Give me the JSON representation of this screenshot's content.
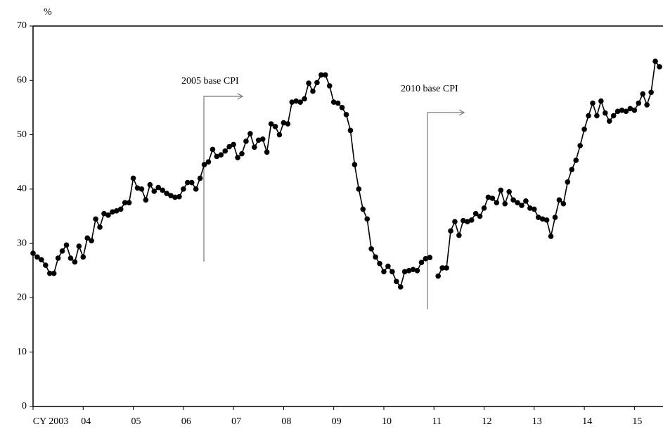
{
  "chart_data": {
    "type": "line",
    "y_unit": "%",
    "annotations": [
      "2005 base CPI",
      "2010 base CPI"
    ],
    "categories": [
      "CY 2003",
      null,
      null,
      null,
      null,
      null,
      null,
      null,
      null,
      null,
      null,
      null,
      "04",
      null,
      null,
      null,
      null,
      null,
      null,
      null,
      null,
      null,
      null,
      null,
      "05",
      null,
      null,
      null,
      null,
      null,
      null,
      null,
      null,
      null,
      null,
      null,
      "06",
      null,
      null,
      null,
      null,
      null,
      null,
      null,
      null,
      null,
      null,
      null,
      "07",
      null,
      null,
      null,
      null,
      null,
      null,
      null,
      null,
      null,
      null,
      null,
      "08",
      null,
      null,
      null,
      null,
      null,
      null,
      null,
      null,
      null,
      null,
      null,
      "09",
      null,
      null,
      null,
      null,
      null,
      null,
      null,
      null,
      null,
      null,
      null,
      "10",
      null,
      null,
      null,
      null,
      null,
      null,
      null,
      null,
      null,
      null,
      null,
      "11",
      null,
      null,
      null,
      null,
      null,
      null,
      null,
      null,
      null,
      null,
      null,
      "12",
      null,
      null,
      null,
      null,
      null,
      null,
      null,
      null,
      null,
      null,
      null,
      "13",
      null,
      null,
      null,
      null,
      null,
      null,
      null,
      null,
      null,
      null,
      null,
      "14",
      null,
      null,
      null,
      null,
      null,
      null,
      null,
      null,
      null,
      null,
      null,
      "15",
      null,
      null,
      null,
      null,
      null,
      null
    ],
    "values": [
      28.2,
      27.5,
      27,
      26,
      24.5,
      24.5,
      27.3,
      28.6,
      29.7,
      27.3,
      26.6,
      29.5,
      27.5,
      31,
      30.5,
      34.5,
      33,
      35.5,
      35.2,
      35.8,
      36,
      36.3,
      37.5,
      37.5,
      42,
      40.2,
      40,
      38,
      40.8,
      39.6,
      40.3,
      39.8,
      39.2,
      38.8,
      38.5,
      38.6,
      40,
      41.2,
      41.2,
      40,
      42,
      44.5,
      45,
      47.3,
      46,
      46.3,
      47,
      47.8,
      48.2,
      45.8,
      46.5,
      48.8,
      50.2,
      47.7,
      49,
      49.2,
      46.8,
      52,
      51.5,
      50,
      52.2,
      52,
      56,
      56.2,
      56,
      56.6,
      59.5,
      58,
      59.6,
      61,
      61,
      59,
      56,
      55.8,
      55,
      53.7,
      50.8,
      44.5,
      40,
      36.3,
      34.5,
      29,
      27.5,
      26.3,
      24.8,
      25.8,
      24.8,
      23,
      22,
      24.8,
      25,
      25.2,
      25,
      26.5,
      27.2,
      27.4,
      null,
      24,
      25.5,
      25.5,
      32.3,
      34,
      31.5,
      34.2,
      34,
      34.3,
      35.5,
      35,
      36.5,
      38.5,
      38.3,
      37.5,
      39.8,
      37.3,
      39.5,
      38,
      37.5,
      37,
      37.8,
      36.5,
      36.3,
      34.8,
      34.5,
      34.3,
      31.3,
      34.8,
      38,
      37.3,
      41.3,
      43.6,
      45.3,
      48,
      51,
      53.5,
      55.8,
      53.5,
      56.2,
      54,
      52.5,
      53.5,
      54.3,
      54.5,
      54.3,
      54.8,
      54.5,
      55.8,
      57.5,
      55.5,
      57.8,
      63.5,
      62.5
    ],
    "color": "#000000",
    "ylim": [
      0,
      70
    ],
    "yticks": [
      0,
      10,
      20,
      30,
      40,
      50,
      60,
      70
    ],
    "grid": false
  }
}
